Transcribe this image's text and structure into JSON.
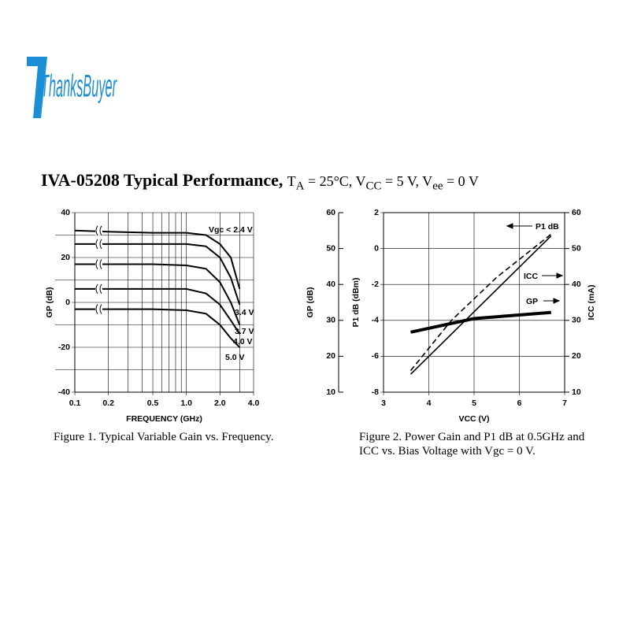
{
  "logo": "ThanksBuyer",
  "heading": {
    "title": "IVA-05208 Typical Performance,",
    "conditions": [
      "T",
      "A",
      " = 25°C, V",
      "CC",
      " = 5 V, V",
      "ee",
      " = 0 V"
    ]
  },
  "chart_data": [
    {
      "type": "line",
      "xscale": "log",
      "xlabel": "FREQUENCY (GHz)",
      "ylabel": "GP (dB)",
      "caption": "Figure 1.  Typical Variable Gain vs. Frequency.",
      "xlim": [
        0.1,
        4.0
      ],
      "xticks": [
        0.1,
        0.2,
        0.5,
        {
          "value": 1.0,
          "label": "1.0"
        },
        {
          "value": 2.0,
          "label": "2.0"
        },
        {
          "value": 4.0,
          "label": "4.0"
        }
      ],
      "xgrid": [
        0.3,
        0.4,
        0.6,
        0.7,
        0.8,
        0.9,
        3.0
      ],
      "ylim": [
        -40,
        40
      ],
      "yticks": [
        -40,
        -20,
        0,
        20,
        40
      ],
      "ygrid": [
        -30,
        -10,
        10,
        30
      ],
      "x": [
        0.1,
        0.2,
        0.5,
        1.0,
        1.5,
        2.0,
        2.5,
        3.0
      ],
      "series": [
        {
          "name": "Vgc < 2.4 V",
          "color": "#000000",
          "values": [
            32,
            31.5,
            31,
            31,
            30,
            26,
            20,
            6
          ]
        },
        {
          "name": "3.4 V",
          "color": "#000000",
          "values": [
            26,
            26,
            26,
            26,
            25,
            20,
            11,
            -1
          ]
        },
        {
          "name": "3.7 V",
          "color": "#000000",
          "values": [
            17,
            17,
            17,
            16.5,
            15,
            9,
            0,
            -10
          ]
        },
        {
          "name": "4.0 V",
          "color": "#000000",
          "values": [
            6,
            6,
            6,
            6,
            4,
            -1,
            -8,
            -14
          ]
        },
        {
          "name": "5.0 V",
          "color": "#000000",
          "values": [
            -3,
            -3,
            -3,
            -3.5,
            -5,
            -10,
            -16,
            -20
          ]
        }
      ]
    },
    {
      "type": "line",
      "xlabel": "VCC (V)",
      "ylabel": "P1 dB (dBm)",
      "y2label": "ICC (mA)",
      "y3label": "GP (dB)",
      "caption": "Figure 2.  Power Gain and P1 dB at 0.5GHz and ICC vs. Bias Voltage with Vgc = 0 V.",
      "xlim": [
        3,
        7
      ],
      "xticks": [
        3,
        4,
        5,
        6,
        7
      ],
      "ylim": [
        -8,
        2
      ],
      "yticks": [
        -8,
        -6,
        -4,
        -2,
        0,
        2
      ],
      "y2lim": [
        10,
        60
      ],
      "y2ticks": [
        10,
        20,
        30,
        40,
        50,
        60
      ],
      "y3lim": [
        10,
        60
      ],
      "y3ticks": [
        10,
        20,
        30,
        40,
        50,
        60
      ],
      "grid": true,
      "series": [
        {
          "name": "P1 dB",
          "color": "#000000",
          "axis": "y",
          "line_style": "solid",
          "line_width": 1.6,
          "x": [
            3.6,
            6.7
          ],
          "values": [
            -7.0,
            0.7
          ]
        },
        {
          "name": "ICC",
          "color": "#000000",
          "axis": "y2",
          "line_style": "dashed",
          "line_width": 1.6,
          "x": [
            3.6,
            4.5,
            5.5,
            6.7
          ],
          "values": [
            16,
            30,
            42,
            54
          ]
        },
        {
          "name": "GP",
          "color": "#000000",
          "axis": "y3",
          "line_style": "solid",
          "line_width": 4,
          "x": [
            3.6,
            5,
            6.7
          ],
          "values": [
            26.7,
            30.5,
            32.2
          ]
        }
      ]
    }
  ]
}
